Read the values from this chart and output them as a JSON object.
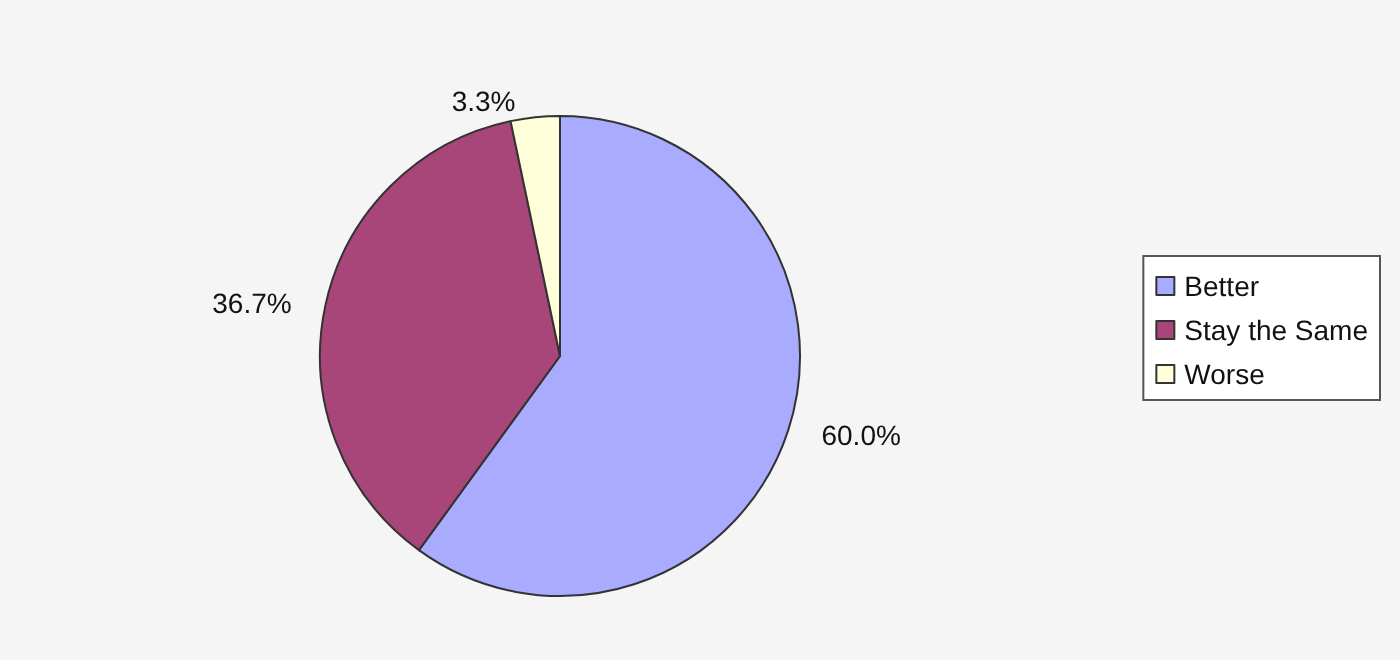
{
  "chart_data": {
    "type": "pie",
    "categories": [
      "Better",
      "Stay the Same",
      "Worse"
    ],
    "values": [
      60.0,
      36.7,
      3.3
    ],
    "colors": [
      "#a9abff",
      "#a8467a",
      "#ffffd9"
    ],
    "value_labels": [
      "60.0%",
      "36.7%",
      "3.3%"
    ],
    "legend": "right"
  }
}
